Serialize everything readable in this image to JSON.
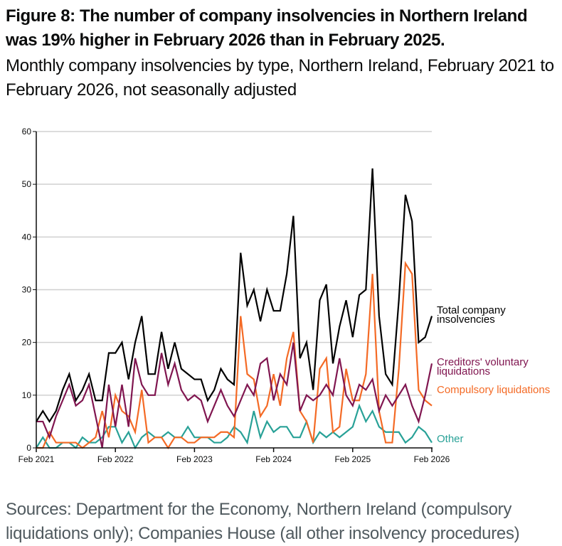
{
  "header": {
    "title": "Figure 8: The number of company insolvencies in Northern Ireland was 19% higher in February 2026 than in February 2025.",
    "subtitle": "Monthly company insolvencies by type, Northern Ireland, February 2021 to February 2026, not seasonally adjusted"
  },
  "footer": {
    "source": "Sources: Department for the Economy, Northern Ireland (compulsory liquidations only); Companies House (all other insolvency procedures)"
  },
  "chart_data": {
    "type": "line",
    "title": "Figure 8: The number of company insolvencies in Northern Ireland was 19% higher in February 2026 than in February 2025.",
    "subtitle": "Monthly company insolvencies by type, Northern Ireland, February 2021 to February 2026, not seasonally adjusted",
    "xlabel": "",
    "ylabel": "",
    "ylim": [
      0,
      60
    ],
    "yticks": [
      0,
      10,
      20,
      30,
      40,
      50,
      60
    ],
    "xticks": [
      {
        "index": 0,
        "label": "Feb 2021"
      },
      {
        "index": 12,
        "label": "Feb 2022"
      },
      {
        "index": 24,
        "label": "Feb 2023"
      },
      {
        "index": 36,
        "label": "Feb 2024"
      },
      {
        "index": 48,
        "label": "Feb 2025"
      },
      {
        "index": 60,
        "label": "Feb 2026"
      }
    ],
    "x_start": "Feb 2021",
    "x_end": "Feb 2026",
    "x_frequency": "monthly",
    "grid": "horizontal",
    "legend": "direct labels at right end of lines",
    "series": [
      {
        "name": "Total company insolvencies",
        "label_lines": [
          "Total company",
          "insolvencies"
        ],
        "color": "#000000",
        "values": [
          5,
          7,
          5,
          7,
          11,
          14,
          9,
          11,
          14,
          9,
          9,
          18,
          18,
          20,
          13,
          20,
          25,
          14,
          14,
          22,
          15,
          20,
          15,
          14,
          13,
          13,
          9,
          11,
          15,
          13,
          12,
          37,
          27,
          30,
          24,
          30,
          26,
          26,
          33,
          44,
          17,
          20,
          11,
          28,
          31,
          16,
          23,
          28,
          21,
          29,
          30,
          53,
          25,
          14,
          12,
          28,
          48,
          43,
          20,
          21,
          25
        ]
      },
      {
        "name": "Creditors' voluntary liquidations",
        "label_lines": [
          "Creditors' voluntary",
          "liquidations"
        ],
        "color": "#801650",
        "values": [
          5,
          5,
          2,
          6,
          9,
          12,
          8,
          9,
          12,
          6,
          0,
          12,
          4,
          12,
          4,
          17,
          12,
          10,
          10,
          18,
          12,
          16,
          11,
          9,
          10,
          9,
          5,
          8,
          11,
          8,
          6,
          9,
          12,
          10,
          16,
          17,
          9,
          14,
          12,
          20,
          7,
          10,
          9,
          10,
          12,
          10,
          17,
          10,
          8,
          12,
          11,
          13,
          7,
          10,
          8,
          10,
          12,
          8,
          5,
          10,
          16
        ]
      },
      {
        "name": "Compulsory liquidations",
        "label_lines": [
          "Compulsory liquidations"
        ],
        "color": "#f46a25",
        "values": [
          0,
          0,
          3,
          1,
          1,
          1,
          1,
          0,
          1,
          2,
          7,
          2,
          10,
          7,
          6,
          3,
          11,
          1,
          2,
          2,
          0,
          2,
          2,
          1,
          1,
          2,
          2,
          2,
          3,
          3,
          2,
          25,
          14,
          13,
          6,
          8,
          14,
          8,
          17,
          22,
          7,
          5,
          1,
          15,
          17,
          3,
          4,
          15,
          9,
          9,
          14,
          33,
          7,
          1,
          1,
          15,
          35,
          33,
          11,
          9,
          8
        ]
      },
      {
        "name": "Other",
        "label_lines": [
          "Other"
        ],
        "color": "#28a197",
        "values": [
          0,
          2,
          0,
          0,
          1,
          1,
          0,
          2,
          1,
          1,
          2,
          4,
          4,
          1,
          3,
          0,
          2,
          3,
          2,
          2,
          3,
          2,
          2,
          4,
          2,
          2,
          2,
          1,
          1,
          2,
          4,
          3,
          1,
          7,
          2,
          5,
          3,
          4,
          4,
          2,
          2,
          5,
          1,
          3,
          2,
          3,
          2,
          3,
          4,
          8,
          5,
          7,
          4,
          3,
          3,
          3,
          1,
          2,
          4,
          3,
          1
        ]
      }
    ]
  }
}
